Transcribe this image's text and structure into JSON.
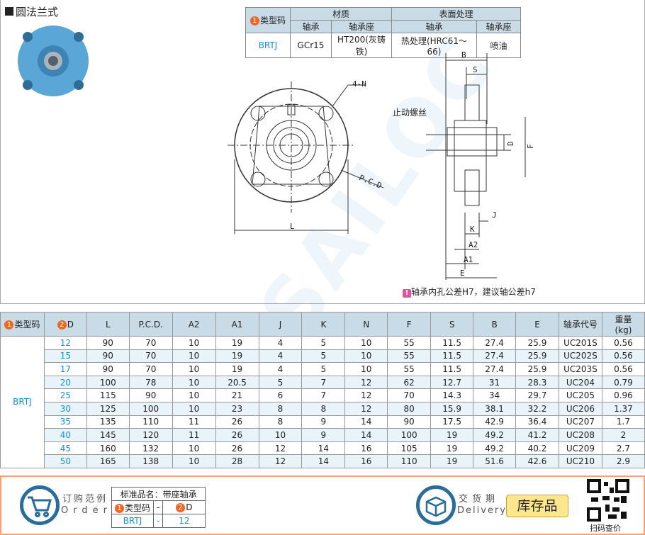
{
  "title": "圆法兰式",
  "material_table": {
    "type_header": "类型码",
    "badge1": "1",
    "material": "材质",
    "surface": "表面处理",
    "sub": [
      "轴承",
      "轴承座",
      "轴承",
      "轴承座"
    ],
    "row": [
      "BRTJ",
      "GCr15",
      "HT200(灰铸铁)",
      "热处理(HRC61～66)",
      "喷油"
    ]
  },
  "drawing": {
    "labels": {
      "n": "4-N",
      "pcd": "P.C.D",
      "l": "L",
      "b": "B",
      "s": "S",
      "set_screw": "止动螺丝",
      "d": "D",
      "f": "F",
      "j": "J",
      "k": "K",
      "a2": "A2",
      "a1": "A1",
      "e": "E"
    },
    "watermark": "SAILOC"
  },
  "note": "轴承内孔公差H7，建议轴公差h7",
  "data_table": {
    "headers": [
      "类型码",
      "D",
      "L",
      "P.C.D.",
      "A2",
      "A1",
      "J",
      "K",
      "N",
      "F",
      "S",
      "B",
      "E",
      "轴承代号",
      "重量"
    ],
    "weight_unit": "(kg)",
    "badge1": "1",
    "badge2": "2",
    "type": "BRTJ",
    "rows": [
      [
        "12",
        "90",
        "70",
        "10",
        "19",
        "4",
        "5",
        "10",
        "55",
        "11.5",
        "27.4",
        "25.9",
        "UC201S",
        "0.56"
      ],
      [
        "15",
        "90",
        "70",
        "10",
        "19",
        "4",
        "5",
        "10",
        "55",
        "11.5",
        "27.4",
        "25.9",
        "UC202S",
        "0.56"
      ],
      [
        "17",
        "90",
        "70",
        "10",
        "19",
        "4",
        "5",
        "10",
        "55",
        "11.5",
        "27.4",
        "25.9",
        "UC203S",
        "0.56"
      ],
      [
        "20",
        "100",
        "78",
        "10",
        "20.5",
        "5",
        "7",
        "12",
        "62",
        "12.7",
        "31",
        "28.3",
        "UC204",
        "0.79"
      ],
      [
        "25",
        "115",
        "90",
        "10",
        "21",
        "6",
        "7",
        "12",
        "70",
        "14.3",
        "34",
        "29.7",
        "UC205",
        "0.96"
      ],
      [
        "30",
        "125",
        "100",
        "10",
        "23",
        "8",
        "8",
        "12",
        "80",
        "15.9",
        "38.1",
        "32.2",
        "UC206",
        "1.37"
      ],
      [
        "35",
        "135",
        "110",
        "11",
        "26",
        "8",
        "9",
        "14",
        "90",
        "17.5",
        "42.9",
        "36.4",
        "UC207",
        "1.7"
      ],
      [
        "40",
        "145",
        "120",
        "11",
        "26",
        "10",
        "9",
        "14",
        "100",
        "19",
        "49.2",
        "41.2",
        "UC208",
        "2"
      ],
      [
        "45",
        "160",
        "132",
        "10",
        "26",
        "12",
        "14",
        "16",
        "105",
        "19",
        "49.2",
        "40.2",
        "UC209",
        "2.7"
      ],
      [
        "50",
        "165",
        "138",
        "10",
        "28",
        "12",
        "14",
        "16",
        "110",
        "19",
        "51.6",
        "42.6",
        "UC210",
        "2.9"
      ]
    ]
  },
  "order": {
    "label_cn": "订购范例",
    "label_en": "Order",
    "std_name": "标准品名：带座轴承",
    "type_header": "类型码",
    "dash": "-",
    "d_header": "D",
    "type": "BRTJ",
    "d": "12"
  },
  "delivery": {
    "label_cn": "交货期",
    "label_en": "Delivery",
    "status": "库存品"
  },
  "qr": {
    "caption": "扫码查价"
  },
  "colors": {
    "header_bg": "#c9dbe6",
    "accent_blue": "#1a8fd0",
    "badge_orange": "#f26522",
    "stock_yellow": "#fde78e"
  }
}
